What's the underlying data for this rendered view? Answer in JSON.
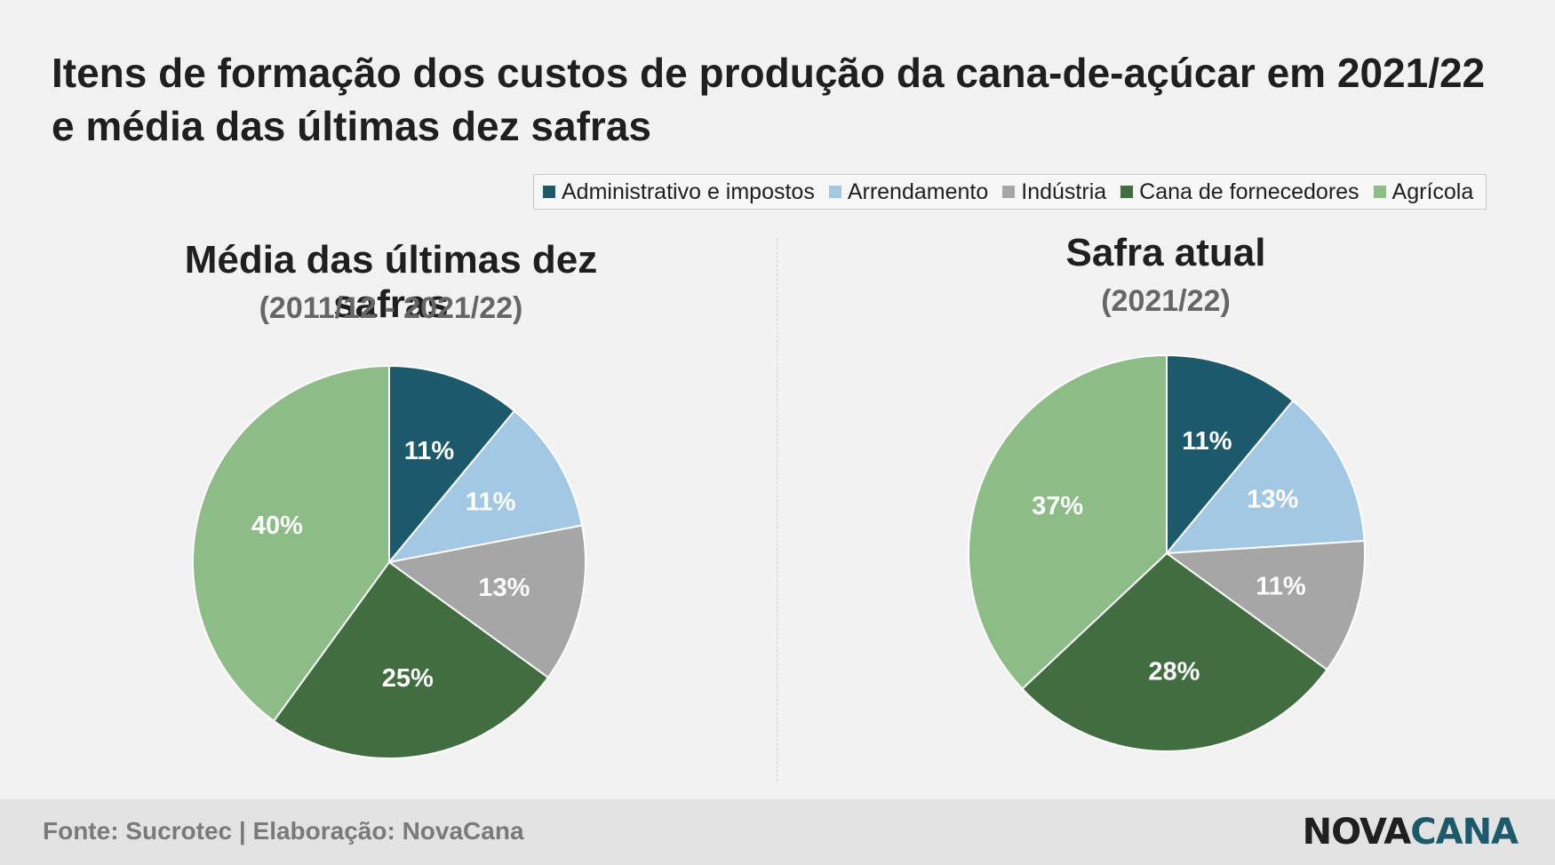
{
  "title": "Itens de formação dos custos de produção da cana-de-açúcar em 2021/22 e média das últimas dez safras",
  "legend": [
    {
      "label": "Administrativo e impostos",
      "color": "#1c5a6b"
    },
    {
      "label": "Arrendamento",
      "color": "#a3c8e4"
    },
    {
      "label": "Indústria",
      "color": "#a6a6a6"
    },
    {
      "label": "Cana de fornecedores",
      "color": "#426d40"
    },
    {
      "label": "Agrícola",
      "color": "#8cbd87"
    }
  ],
  "chart_data": [
    {
      "type": "pie",
      "title": "Média das últimas dez safras",
      "subtitle": "(2011/12 - 2021/22)",
      "categories": [
        "Administrativo e impostos",
        "Arrendamento",
        "Indústria",
        "Cana de fornecedores",
        "Agrícola"
      ],
      "values": [
        11,
        11,
        13,
        25,
        40
      ],
      "labels": [
        "11%",
        "11%",
        "13%",
        "25%",
        "40%"
      ],
      "colors": [
        "#1c5a6b",
        "#a3c8e4",
        "#a6a6a6",
        "#426d40",
        "#8cbd87"
      ]
    },
    {
      "type": "pie",
      "title": "Safra atual",
      "subtitle": "(2021/22)",
      "categories": [
        "Administrativo e impostos",
        "Arrendamento",
        "Indústria",
        "Cana de fornecedores",
        "Agrícola"
      ],
      "values": [
        11,
        13,
        11,
        28,
        37
      ],
      "labels": [
        "11%",
        "13%",
        "11%",
        "28%",
        "37%"
      ],
      "colors": [
        "#1c5a6b",
        "#a3c8e4",
        "#a6a6a6",
        "#426d40",
        "#8cbd87"
      ]
    }
  ],
  "footer": {
    "source": "Fonte: Sucrotec | Elaboração: NovaCana",
    "logo_part1": "NOVA",
    "logo_part2": "CANA"
  }
}
